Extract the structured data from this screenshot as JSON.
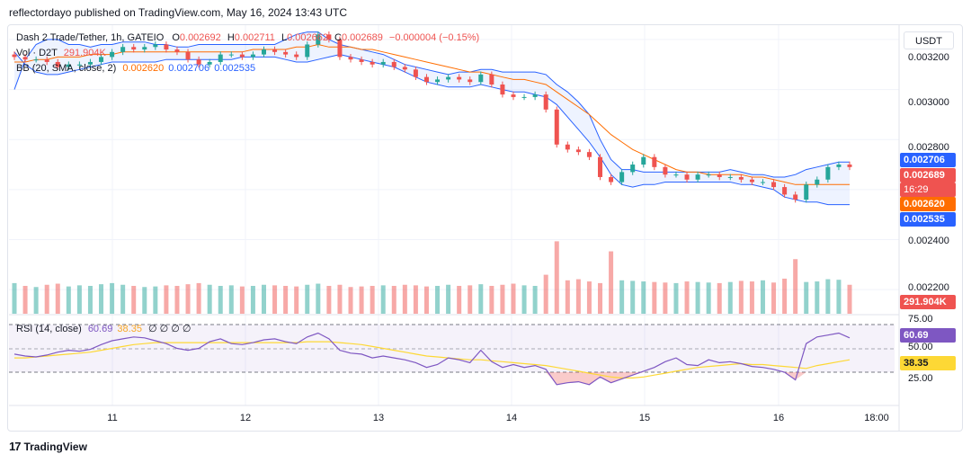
{
  "header": {
    "text": "reflectordayo published on TradingView.com, May 16, 2024 13:43 UTC"
  },
  "legend": {
    "symbol": "Dash 2 Trade/Tether, 1h, GATEIO",
    "o_label": "O",
    "o_value": "0.002692",
    "h_label": "H",
    "h_value": "0.002711",
    "l_label": "L",
    "l_value": "0.002662",
    "c_label": "C",
    "c_value": "0.002689",
    "change": "−0.000004 (−0.15%)",
    "vol_label": "Vol · D2T",
    "vol_value": "291.904K",
    "bb_label": "BB (20, SMA, close, 2)",
    "bb_basis": "0.002620",
    "bb_upper": "0.002706",
    "bb_lower": "0.002535",
    "rsi_label": "RSI (14, close)",
    "rsi_value": "60.69",
    "rsi_ma": "38.35",
    "rsi_extra": "∅ ∅ ∅ ∅"
  },
  "currency_button": "USDT",
  "price_tags": {
    "upper": "0.002706",
    "last": "0.002689",
    "countdown": "16:29",
    "basis": "0.002620",
    "lower": "0.002535",
    "volume": "291.904K",
    "rsi": "60.69",
    "rsi_ma": "38.35"
  },
  "colors": {
    "up": "#26a69a",
    "down": "#ef5350",
    "band": "#2962ff",
    "basis": "#ff6d00",
    "rsi": "#7e57c2",
    "rsi_ma": "#fdd835"
  },
  "footer": {
    "brand": "TradingView",
    "logo": "17"
  },
  "chart_data": [
    {
      "type": "candlestick",
      "title": "Dash 2 Trade/Tether, 1h, GATEIO",
      "x_tick_labels": [
        "11",
        "12",
        "13",
        "14",
        "15",
        "16",
        "18:00"
      ],
      "y_tick_labels": [
        "0.003200",
        "0.003000",
        "0.002800",
        "0.002400",
        "0.002200"
      ],
      "ylim": [
        0.0021,
        0.00325
      ],
      "series": [
        {
          "name": "Close",
          "values": [
            0.00313,
            0.00312,
            0.00312,
            0.00311,
            0.00309,
            0.0031,
            0.0031,
            0.00311,
            0.00313,
            0.00315,
            0.00317,
            0.00316,
            0.00317,
            0.00318,
            0.00316,
            0.00315,
            0.00312,
            0.0031,
            0.00311,
            0.00314,
            0.00314,
            0.00313,
            0.00314,
            0.00316,
            0.00315,
            0.00314,
            0.00313,
            0.00318,
            0.00322,
            0.0032,
            0.00313,
            0.00312,
            0.00311,
            0.0031,
            0.00311,
            0.00309,
            0.00308,
            0.00305,
            0.00303,
            0.00304,
            0.00305,
            0.00304,
            0.00303,
            0.00306,
            0.00302,
            0.00298,
            0.00297,
            0.00297,
            0.00298,
            0.00292,
            0.00278,
            0.00276,
            0.00275,
            0.00273,
            0.00265,
            0.00263,
            0.00267,
            0.0027,
            0.00273,
            0.00269,
            0.00266,
            0.00266,
            0.00264,
            0.00266,
            0.00266,
            0.00265,
            0.00265,
            0.00264,
            0.00263,
            0.00263,
            0.00261,
            0.00258,
            0.00256,
            0.00262,
            0.00264,
            0.00269,
            0.0027,
            0.00269
          ]
        },
        {
          "name": "BB Upper",
          "values": [
            0.003,
            0.00312,
            0.00318,
            0.0032,
            0.0032,
            0.00318,
            0.00318,
            0.00317,
            0.00318,
            0.00318,
            0.00319,
            0.00319,
            0.00319,
            0.00318,
            0.00318,
            0.00317,
            0.00317,
            0.00318,
            0.00318,
            0.00318,
            0.00318,
            0.00318,
            0.00318,
            0.00318,
            0.00318,
            0.0032,
            0.00322,
            0.00323,
            0.00323,
            0.0032,
            0.00318,
            0.00317,
            0.00316,
            0.00315,
            0.00314,
            0.00312,
            0.0031,
            0.00309,
            0.00308,
            0.00307,
            0.00306,
            0.00307,
            0.00307,
            0.00308,
            0.00308,
            0.00307,
            0.00307,
            0.00307,
            0.00307,
            0.00306,
            0.00302,
            0.00299,
            0.00295,
            0.0029,
            0.0028,
            0.00272,
            0.00268,
            0.00268,
            0.00267,
            0.00267,
            0.00267,
            0.00267,
            0.00267,
            0.00267,
            0.00267,
            0.00267,
            0.00268,
            0.00267,
            0.00266,
            0.00266,
            0.00265,
            0.00265,
            0.00266,
            0.00268,
            0.00269,
            0.0027,
            0.00271,
            0.00271
          ]
        },
        {
          "name": "BB Basis",
          "values": [
            0.00311,
            0.00311,
            0.00312,
            0.00312,
            0.00313,
            0.00313,
            0.00313,
            0.00314,
            0.00314,
            0.00314,
            0.00315,
            0.00315,
            0.00315,
            0.00315,
            0.00315,
            0.00315,
            0.00315,
            0.00315,
            0.00315,
            0.00315,
            0.00315,
            0.00315,
            0.00316,
            0.00316,
            0.00316,
            0.00316,
            0.00317,
            0.00317,
            0.00318,
            0.00317,
            0.00317,
            0.00317,
            0.00316,
            0.00316,
            0.00315,
            0.00314,
            0.00313,
            0.00312,
            0.00311,
            0.0031,
            0.00309,
            0.00308,
            0.00307,
            0.00307,
            0.00306,
            0.00305,
            0.00304,
            0.00304,
            0.00303,
            0.00302,
            0.00299,
            0.00296,
            0.00293,
            0.0029,
            0.00286,
            0.00282,
            0.00279,
            0.00276,
            0.00274,
            0.00272,
            0.0027,
            0.00268,
            0.00267,
            0.00267,
            0.00266,
            0.00266,
            0.00266,
            0.00266,
            0.00265,
            0.00265,
            0.00264,
            0.00263,
            0.00262,
            0.00262,
            0.00262,
            0.00262,
            0.00262,
            0.00262
          ]
        },
        {
          "name": "BB Lower",
          "values": [
            0.00315,
            0.0031,
            0.00307,
            0.00306,
            0.00306,
            0.00307,
            0.00308,
            0.00309,
            0.0031,
            0.00311,
            0.00311,
            0.00311,
            0.00311,
            0.00311,
            0.00312,
            0.00312,
            0.00312,
            0.00312,
            0.00312,
            0.00312,
            0.00312,
            0.00313,
            0.00313,
            0.00313,
            0.00313,
            0.00312,
            0.00311,
            0.00311,
            0.00312,
            0.00313,
            0.00314,
            0.00313,
            0.00312,
            0.00311,
            0.0031,
            0.00309,
            0.00307,
            0.00305,
            0.00303,
            0.00302,
            0.00301,
            0.00301,
            0.00301,
            0.00302,
            0.00301,
            0.003,
            0.00299,
            0.00299,
            0.00298,
            0.00297,
            0.00294,
            0.00289,
            0.00284,
            0.00279,
            0.00273,
            0.00266,
            0.00262,
            0.00261,
            0.00262,
            0.00262,
            0.00263,
            0.00263,
            0.00263,
            0.00263,
            0.00263,
            0.00263,
            0.00263,
            0.00262,
            0.00262,
            0.00261,
            0.0026,
            0.00257,
            0.00256,
            0.00255,
            0.00255,
            0.00254,
            0.00254,
            0.00254
          ]
        }
      ]
    },
    {
      "type": "bar",
      "title": "Vol · D2T",
      "series": [
        {
          "name": "Volume",
          "values": [
            55,
            50,
            48,
            52,
            54,
            49,
            51,
            50,
            53,
            55,
            52,
            50,
            48,
            49,
            51,
            50,
            53,
            55,
            52,
            50,
            51,
            49,
            50,
            52,
            51,
            50,
            49,
            52,
            54,
            50,
            52,
            48,
            49,
            50,
            51,
            50,
            52,
            51,
            49,
            50,
            52,
            50,
            51,
            53,
            50,
            52,
            54,
            51,
            50,
            70,
            130,
            60,
            62,
            58,
            55,
            112,
            60,
            59,
            58,
            57,
            56,
            55,
            58,
            57,
            56,
            55,
            57,
            59,
            58,
            60,
            56,
            63,
            98,
            57,
            58,
            62,
            61,
            52
          ]
        }
      ]
    },
    {
      "type": "line",
      "title": "RSI (14, close)",
      "y_tick_labels": [
        "75.00",
        "50.00",
        "25.00"
      ],
      "ylim": [
        10,
        80
      ],
      "series": [
        {
          "name": "RSI",
          "values": [
            44,
            42,
            41,
            43,
            46,
            48,
            47,
            49,
            54,
            58,
            60,
            62,
            61,
            58,
            55,
            50,
            48,
            50,
            57,
            60,
            55,
            54,
            56,
            59,
            60,
            57,
            55,
            62,
            66,
            60,
            48,
            45,
            44,
            40,
            42,
            40,
            38,
            35,
            30,
            33,
            40,
            38,
            35,
            48,
            36,
            30,
            33,
            30,
            32,
            28,
            12,
            14,
            15,
            12,
            20,
            14,
            18,
            22,
            26,
            30,
            36,
            40,
            33,
            32,
            38,
            35,
            36,
            34,
            31,
            30,
            28,
            25,
            17,
            55,
            62,
            64,
            66,
            61
          ]
        },
        {
          "name": "RSI-based MA",
          "values": [
            40,
            40,
            41,
            42,
            43,
            44,
            45,
            46,
            48,
            50,
            52,
            54,
            55,
            56,
            56,
            56,
            56,
            56,
            56,
            56,
            56,
            56,
            56,
            56,
            56,
            56,
            56,
            57,
            57,
            57,
            56,
            55,
            54,
            52,
            50,
            48,
            46,
            44,
            42,
            41,
            40,
            39,
            38,
            38,
            37,
            36,
            35,
            34,
            33,
            32,
            30,
            28,
            26,
            24,
            22,
            20,
            19,
            19,
            20,
            22,
            24,
            26,
            28,
            30,
            31,
            32,
            33,
            34,
            33,
            33,
            32,
            31,
            30,
            29,
            32,
            34,
            36,
            38
          ]
        }
      ]
    }
  ]
}
